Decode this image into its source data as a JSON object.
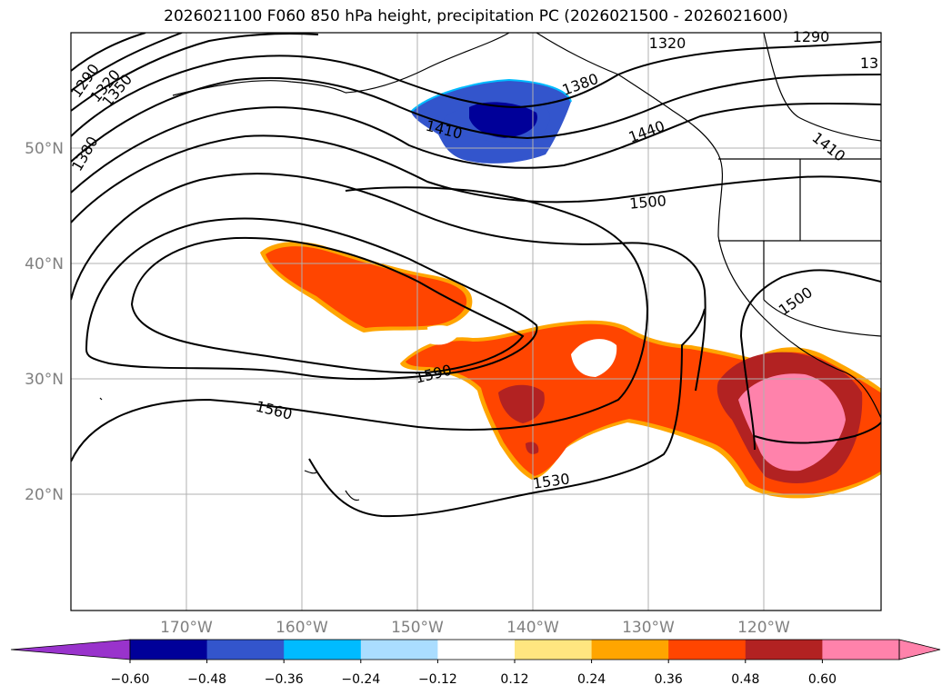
{
  "title": "2026021100 F060 850 hPa height, precipitation PC (2026021500 - 2026021600)",
  "axes": {
    "lat_labels": [
      "50°N",
      "40°N",
      "30°N",
      "20°N"
    ],
    "lon_labels": [
      "170°W",
      "160°W",
      "150°W",
      "140°W",
      "130°W",
      "120°W"
    ]
  },
  "contour_labels": [
    "1290",
    "1320",
    "1350",
    "1380",
    "1410",
    "1320",
    "1290",
    "13",
    "1380",
    "1440",
    "1410",
    "1500",
    "1500",
    "1590",
    "1560",
    "1530"
  ],
  "colorbar": {
    "ticks": [
      "−0.60",
      "−0.48",
      "−0.36",
      "−0.24",
      "−0.12",
      "0.12",
      "0.24",
      "0.36",
      "0.48",
      "0.60"
    ],
    "colors": [
      "#9933cc",
      "#000099",
      "#3355cc",
      "#00bbff",
      "#aaddff",
      "#ffffff",
      "#ffe680",
      "#ffa500",
      "#ff4500",
      "#b22222",
      "#ff82ab",
      "#ff82ab"
    ]
  },
  "colors": {
    "grid": "#b0b0b0",
    "contour": "#000000",
    "axis_text": "#808080"
  }
}
